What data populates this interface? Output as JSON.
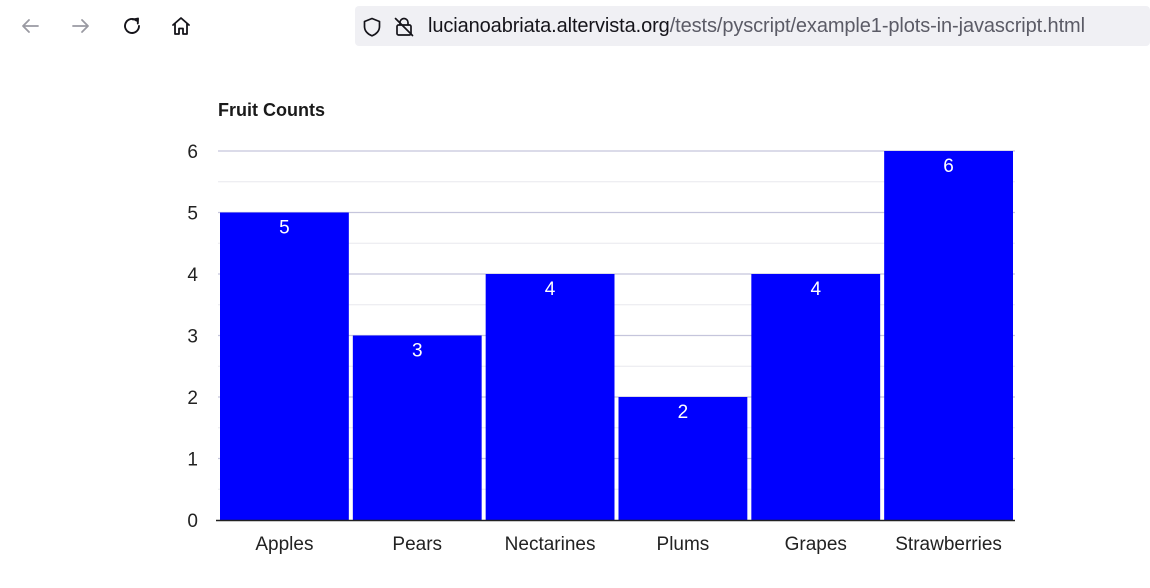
{
  "browser": {
    "url_domain": "lucianoabriata.altervista.org",
    "url_path": "/tests/pyscript/example1-plots-in-javascript.html",
    "icons": [
      "back-arrow-icon",
      "forward-arrow-icon",
      "reload-icon",
      "home-icon",
      "shield-icon",
      "lock-warning-icon"
    ]
  },
  "chart_data": {
    "type": "bar",
    "title": "Fruit Counts",
    "categories": [
      "Apples",
      "Pears",
      "Nectarines",
      "Plums",
      "Grapes",
      "Strawberries"
    ],
    "values": [
      5,
      3,
      4,
      2,
      4,
      6
    ],
    "ylim": [
      0,
      6
    ],
    "yticks": [
      0,
      1,
      2,
      3,
      4,
      5,
      6
    ],
    "xlabel": "",
    "ylabel": "",
    "bar_color": "#0000ff",
    "label_color": "#ffffff",
    "grid": true,
    "legend": false
  }
}
